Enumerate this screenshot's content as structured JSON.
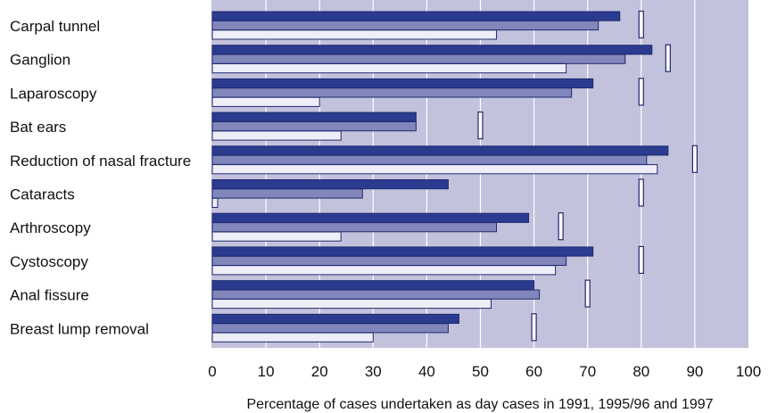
{
  "chart_data": {
    "type": "bar",
    "orientation": "horizontal",
    "categories": [
      "Carpal tunnel",
      "Ganglion",
      "Laparoscopy",
      "Bat ears",
      "Reduction of nasal fracture",
      "Cataracts",
      "Arthroscopy",
      "Cystoscopy",
      "Anal fissure",
      "Breast lump removal"
    ],
    "series": [
      {
        "values": [
          76,
          82,
          71,
          38,
          85,
          44,
          59,
          71,
          60,
          46
        ],
        "color": "#2b3b8f"
      },
      {
        "values": [
          72,
          77,
          67,
          38,
          81,
          28,
          53,
          66,
          61,
          44
        ],
        "color": "#8186bb"
      },
      {
        "values": [
          53,
          66,
          20,
          24,
          83,
          1,
          24,
          64,
          52,
          30
        ],
        "color": "#eeeef8"
      }
    ],
    "target_markers": [
      80,
      85,
      80,
      50,
      90,
      80,
      65,
      80,
      70,
      60
    ],
    "xlim": [
      0,
      100
    ],
    "xticks": [
      "0",
      "10",
      "20",
      "30",
      "40",
      "50",
      "60",
      "70",
      "80",
      "90",
      "100"
    ],
    "xlabel": "Percentage of cases undertaken as day cases in 1991, 1995/96 and 1997",
    "grid": true,
    "colors": {
      "plot_background": "#c2c2dd",
      "gridline": "#ffffff",
      "bar_outline": "#1f2a6e",
      "marker_fill": "#ffffff",
      "marker_outline": "#1f2a6e"
    }
  }
}
